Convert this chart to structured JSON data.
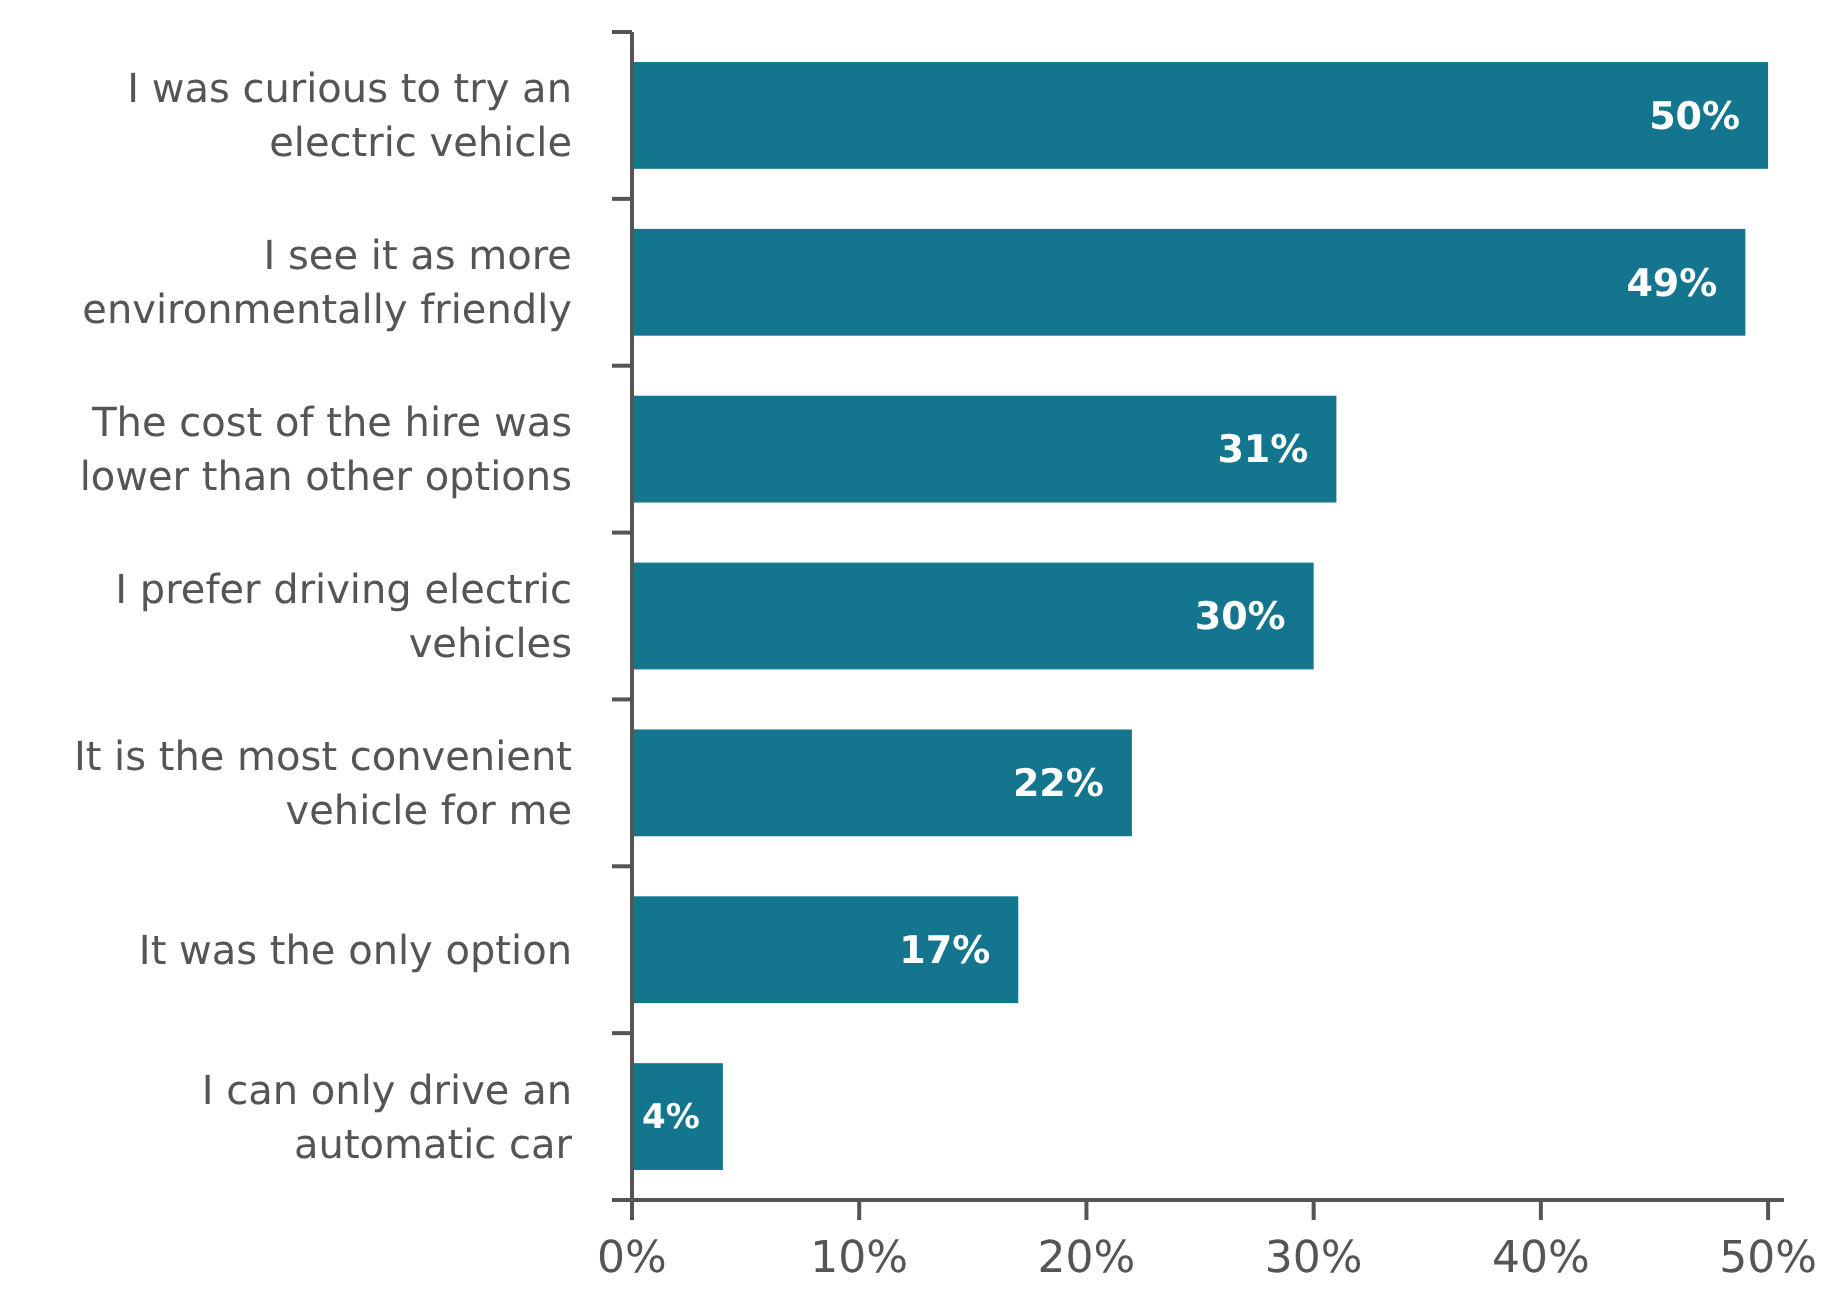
{
  "chart_data": {
    "type": "bar",
    "orientation": "horizontal",
    "categories": [
      "I was curious to try an electric vehicle",
      "I see it as more environmentally friendly",
      "The cost of the hire was lower than other options",
      "I prefer driving electric vehicles",
      "It is the most convenient vehicle for me",
      "It was the only option",
      "I can only drive an automatic car"
    ],
    "values": [
      50,
      49,
      31,
      30,
      22,
      17,
      4
    ],
    "color": "#14758f",
    "xlim": [
      0,
      50.7
    ],
    "xticks": [
      {
        "value": 0,
        "label": "0%"
      },
      {
        "value": 10,
        "label": "10%"
      },
      {
        "value": 20,
        "label": "20%"
      },
      {
        "value": 30,
        "label": "30%"
      },
      {
        "value": 40,
        "label": "40%"
      },
      {
        "value": 50,
        "label": "50%"
      }
    ],
    "value_labels": [
      "50%",
      "49%",
      "31%",
      "30%",
      "22%",
      "17%",
      "4%"
    ],
    "grid": false
  }
}
